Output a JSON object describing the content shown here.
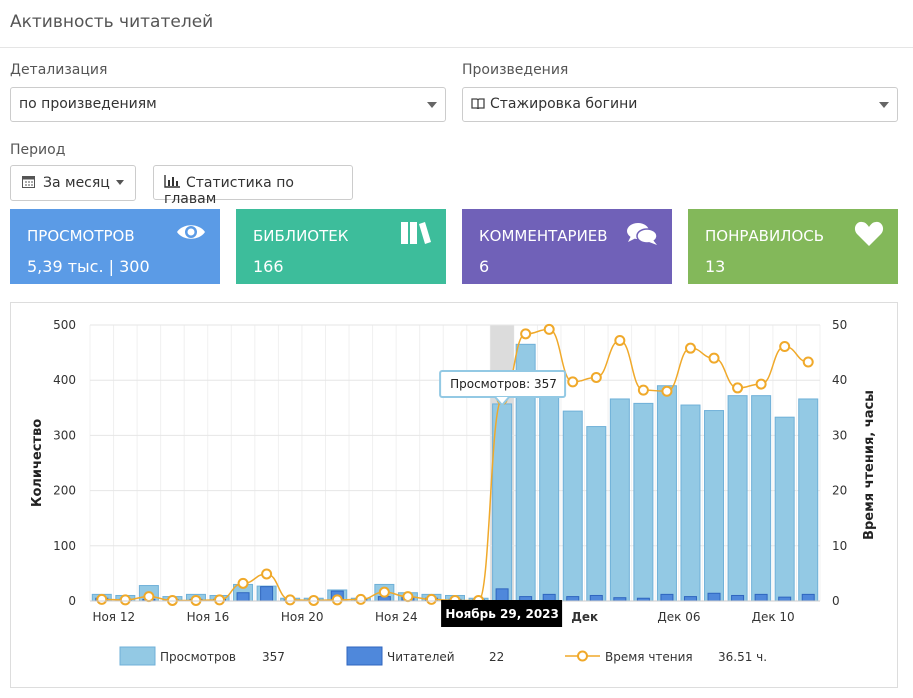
{
  "header": {
    "title": "Активность читателей"
  },
  "filters": {
    "detail": {
      "label": "Детализация",
      "value": "по произведениям"
    },
    "works": {
      "label": "Произведения",
      "value": "Стажировка богини"
    },
    "period": {
      "label": "Период",
      "value": "За месяц"
    },
    "chapters_button": "Статистика по главам"
  },
  "stats": [
    {
      "title": "ПРОСМОТРОВ",
      "value": "5,39 тыс. | 300"
    },
    {
      "title": "БИБЛИОТЕК",
      "value": 166
    },
    {
      "title": "КОММЕНТАРИЕВ",
      "value": 6
    },
    {
      "title": "ПОНРАВИЛОСЬ",
      "value": 13
    }
  ],
  "chart_data": {
    "type": "combo",
    "categories": [
      "Ноя 12",
      null,
      null,
      null,
      "Ноя 16",
      null,
      null,
      null,
      "Ноя 20",
      null,
      null,
      null,
      "Ноя 24",
      null,
      null,
      null,
      null,
      null,
      null,
      null,
      "Дек",
      null,
      null,
      null,
      "Дек 06",
      null,
      null,
      null,
      "Дек 10",
      null,
      null
    ],
    "ylabel": "Количество",
    "y2label": "Время чтения, часы",
    "ylim": [
      0,
      500
    ],
    "yticks": [
      0,
      100,
      200,
      300,
      400,
      500
    ],
    "y2lim": [
      0,
      50
    ],
    "y2ticks": [
      0,
      10,
      20,
      30,
      40,
      50
    ],
    "grid": true,
    "active_index": 17,
    "tooltip": "Просмотров: 357",
    "crosshair_label": "Ноябрь 29, 2023",
    "series": [
      {
        "name": "Просмотров",
        "type": "bar",
        "color": "#93c9e4",
        "current": 357,
        "values": [
          12,
          10,
          28,
          8,
          12,
          10,
          30,
          27,
          5,
          5,
          20,
          5,
          30,
          15,
          12,
          10,
          5,
          357,
          465,
          400,
          344,
          316,
          366,
          358,
          390,
          355,
          345,
          372,
          372,
          333,
          366
        ]
      },
      {
        "name": "Читателей",
        "type": "bar",
        "color": "#4f88db",
        "current": 22,
        "values": [
          5,
          3,
          3,
          2,
          3,
          3,
          15,
          26,
          2,
          2,
          18,
          3,
          8,
          7,
          5,
          3,
          2,
          22,
          8,
          12,
          8,
          10,
          6,
          5,
          12,
          8,
          14,
          10,
          12,
          7,
          12
        ]
      },
      {
        "name": "Время чтения",
        "type": "line",
        "axis": "y2",
        "color": "#f0a92a",
        "current": 36.51,
        "current_label": "36.51 ч.",
        "values": [
          0.3,
          0.2,
          0.8,
          0.1,
          0.1,
          0.2,
          3.2,
          4.9,
          0.2,
          0.1,
          0.2,
          0.3,
          1.6,
          0.8,
          0.3,
          0.1,
          0.1,
          36.5,
          48.4,
          49.2,
          39.7,
          40.5,
          47.2,
          38.2,
          38.0,
          45.8,
          44.0,
          38.6,
          39.3,
          46.1,
          43.3
        ]
      }
    ]
  }
}
